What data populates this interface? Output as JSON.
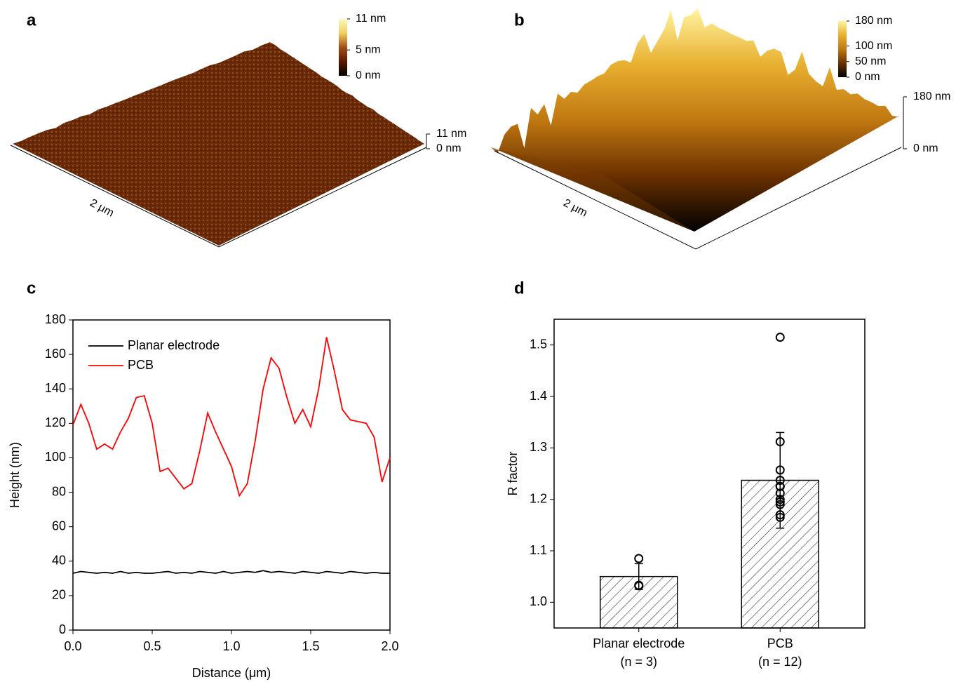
{
  "chart_data": [
    {
      "type": "surface",
      "label": "a",
      "xlabel": "2 μm",
      "colorbar_colors": [
        "#000000",
        "#5a1a00",
        "#a0501a",
        "#f0d060",
        "#fff8c0"
      ],
      "colorbar_lim": [
        0,
        11
      ],
      "colorbar_ticks": [
        {
          "value": 11,
          "label": "11 nm"
        },
        {
          "value": 5,
          "label": "5 nm"
        },
        {
          "value": 0,
          "label": "0 nm"
        }
      ],
      "zlim": [
        0,
        11
      ],
      "zticks": [
        {
          "value": 11,
          "label": "11 nm"
        },
        {
          "value": 0,
          "label": "0 nm"
        }
      ]
    },
    {
      "type": "surface",
      "label": "b",
      "xlabel": "2 μm",
      "colorbar_colors": [
        "#000000",
        "#6a3000",
        "#c07810",
        "#e8b030",
        "#fff4a0"
      ],
      "colorbar_lim": [
        0,
        180
      ],
      "colorbar_ticks": [
        {
          "value": 180,
          "label": "180 nm"
        },
        {
          "value": 100,
          "label": "100 nm"
        },
        {
          "value": 50,
          "label": "50 nm"
        },
        {
          "value": 0,
          "label": "0 nm"
        }
      ],
      "zlim": [
        0,
        180
      ],
      "zticks": [
        {
          "value": 180,
          "label": "180 nm"
        },
        {
          "value": 0,
          "label": "0 nm"
        }
      ]
    },
    {
      "type": "line",
      "label": "c",
      "xlabel": "Distance (μm)",
      "ylabel": "Height (nm)",
      "xlim": [
        0,
        2
      ],
      "ylim": [
        0,
        180
      ],
      "xticks": [
        {
          "value": 0,
          "label": "0.0"
        },
        {
          "value": 0.5,
          "label": "0.5"
        },
        {
          "value": 1,
          "label": "1.0"
        },
        {
          "value": 1.5,
          "label": "1.5"
        },
        {
          "value": 2,
          "label": "2.0"
        }
      ],
      "yticks": [
        0,
        20,
        40,
        60,
        80,
        100,
        120,
        140,
        160,
        180
      ],
      "legend": "upper left",
      "x": [
        0,
        0.05,
        0.1,
        0.15,
        0.2,
        0.25,
        0.3,
        0.35,
        0.4,
        0.45,
        0.5,
        0.55,
        0.6,
        0.65,
        0.7,
        0.75,
        0.8,
        0.85,
        0.9,
        0.95,
        1,
        1.05,
        1.1,
        1.15,
        1.2,
        1.25,
        1.3,
        1.35,
        1.4,
        1.45,
        1.5,
        1.55,
        1.6,
        1.65,
        1.7,
        1.75,
        1.8,
        1.85,
        1.9,
        1.95,
        2
      ],
      "series": [
        {
          "name": "Planar electrode",
          "color": "#000000",
          "values": [
            33,
            34,
            33.5,
            33,
            33.5,
            33,
            34,
            33,
            33.5,
            33,
            33,
            33.5,
            34,
            33,
            33.5,
            33,
            34,
            33.5,
            33,
            34,
            33,
            33.5,
            34,
            33.5,
            34.5,
            33.5,
            34,
            33.5,
            33,
            34,
            33.5,
            33,
            34,
            33.5,
            33,
            34,
            33.5,
            33,
            33.5,
            33,
            33
          ]
        },
        {
          "name": "PCB",
          "color": "#ff0000",
          "values": [
            119,
            131,
            120,
            105,
            108,
            105,
            115,
            123,
            135,
            136,
            120,
            92,
            94,
            88,
            82,
            85,
            104,
            126,
            115,
            105,
            95,
            78,
            85,
            110,
            140,
            158,
            152,
            135,
            120,
            128,
            118,
            140,
            170,
            150,
            128,
            122,
            121,
            120,
            112,
            86,
            100
          ]
        }
      ]
    },
    {
      "type": "bar",
      "label": "d",
      "ylabel": "R factor",
      "categories": [
        "Planar electrode",
        "PCB"
      ],
      "category_notes": [
        "(n = 3)",
        "(n = 12)"
      ],
      "values": [
        1.05,
        1.237
      ],
      "errors": [
        0.025,
        0.093
      ],
      "points": [
        [
          1.085,
          1.033,
          1.032
        ],
        [
          1.515,
          1.312,
          1.257,
          1.237,
          1.225,
          1.212,
          1.2,
          1.195,
          1.19,
          1.17,
          1.165,
          1.225
        ]
      ],
      "color": "#555555",
      "ylim": [
        0.95,
        1.55
      ],
      "yticks": [
        {
          "value": 1,
          "label": "1.0"
        },
        1.1,
        1.2,
        1.3,
        1.4,
        1.5
      ]
    }
  ]
}
